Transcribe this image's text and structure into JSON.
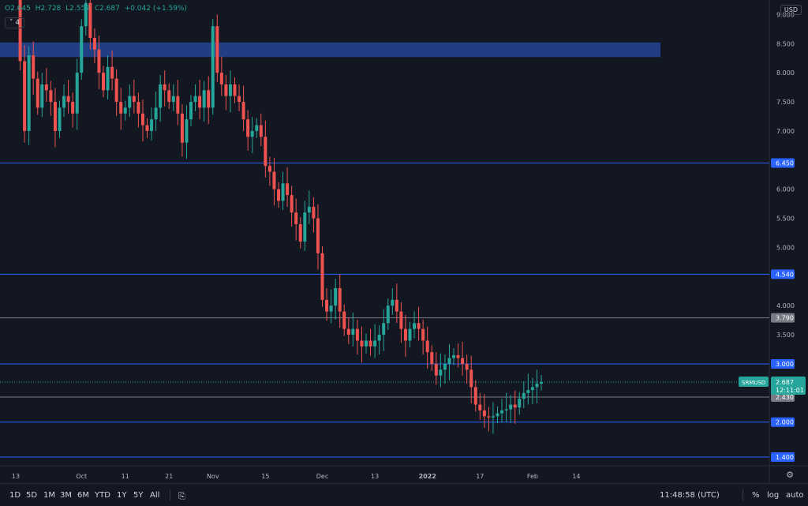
{
  "header": {
    "open": "O2.645",
    "high": "H2.728",
    "low": "L2.552",
    "close": "C2.687",
    "change": "+0.042 (+1.59%)",
    "collapse_label": "4",
    "currency": "USD"
  },
  "chart_data": {
    "type": "candlestick",
    "symbol": "SRMUSD",
    "last_price": "2.687",
    "countdown": "12:11:01",
    "ylim": [
      1.25,
      9.25
    ],
    "y_ticks": [
      "9.000",
      "8.500",
      "8.000",
      "7.500",
      "7.000",
      "6.500",
      "6.000",
      "5.500",
      "5.000",
      "4.500",
      "4.000",
      "3.500",
      "3.000",
      "2.500",
      "2.000",
      "1.500"
    ],
    "x_ticks": [
      "13",
      "Oct",
      "11",
      "21",
      "Nov",
      "15",
      "Dec",
      "13",
      "2022",
      "17",
      "Feb",
      "14"
    ],
    "x_tick_index": [
      0,
      15,
      25,
      35,
      45,
      57,
      70,
      82,
      94,
      106,
      118,
      128
    ],
    "levels": [
      {
        "value": 6.45,
        "label": "6.450",
        "color": "#2962ff"
      },
      {
        "value": 4.54,
        "label": "4.540",
        "color": "#2962ff"
      },
      {
        "value": 3.79,
        "label": "3.790",
        "color": "#787b86"
      },
      {
        "value": 3.0,
        "label": "3.000",
        "color": "#2962ff"
      },
      {
        "value": 2.43,
        "label": "2.430",
        "color": "#787b86"
      },
      {
        "value": 2.0,
        "label": "2.000",
        "color": "#2962ff"
      },
      {
        "value": 1.4,
        "label": "1.400",
        "color": "#2962ff"
      }
    ],
    "zone": {
      "from": 8.27,
      "to": 8.52,
      "color": "#24418f"
    },
    "up_color": "#26a69a",
    "down_color": "#ef5350",
    "closes": [
      9.4,
      8.2,
      7.0,
      8.3,
      7.9,
      7.4,
      7.8,
      7.7,
      7.5,
      7.0,
      7.4,
      7.6,
      7.5,
      7.3,
      8.0,
      8.8,
      9.2,
      8.6,
      8.4,
      8.0,
      7.7,
      8.1,
      7.9,
      7.5,
      7.3,
      7.4,
      7.6,
      7.5,
      7.3,
      7.1,
      7.0,
      7.2,
      7.4,
      7.8,
      7.7,
      7.5,
      7.6,
      7.3,
      6.8,
      7.2,
      7.5,
      7.6,
      7.4,
      7.7,
      7.4,
      8.8,
      8.0,
      7.8,
      7.6,
      7.8,
      7.6,
      7.5,
      7.2,
      6.9,
      7.0,
      7.1,
      6.9,
      6.4,
      6.3,
      6.0,
      5.8,
      6.1,
      5.9,
      5.6,
      5.4,
      5.1,
      5.6,
      5.7,
      5.5,
      4.9,
      4.1,
      3.9,
      4.0,
      4.3,
      3.9,
      3.6,
      3.5,
      3.6,
      3.4,
      3.3,
      3.4,
      3.3,
      3.4,
      3.5,
      3.7,
      4.0,
      4.1,
      3.9,
      3.6,
      3.4,
      3.6,
      3.7,
      3.6,
      3.4,
      3.2,
      3.0,
      2.8,
      2.9,
      3.0,
      3.1,
      3.15,
      3.1,
      3.0,
      2.9,
      2.6,
      2.3,
      2.2,
      2.1,
      2.08,
      2.1,
      2.15,
      2.2,
      2.22,
      2.3,
      2.25,
      2.4,
      2.5,
      2.55,
      2.6,
      2.66,
      2.687
    ]
  },
  "bottom": {
    "ranges": [
      "1D",
      "5D",
      "1M",
      "3M",
      "6M",
      "YTD",
      "1Y",
      "5Y",
      "All"
    ],
    "clock": "11:48:58 (UTC)",
    "percent": "%",
    "log": "log",
    "auto": "auto"
  }
}
